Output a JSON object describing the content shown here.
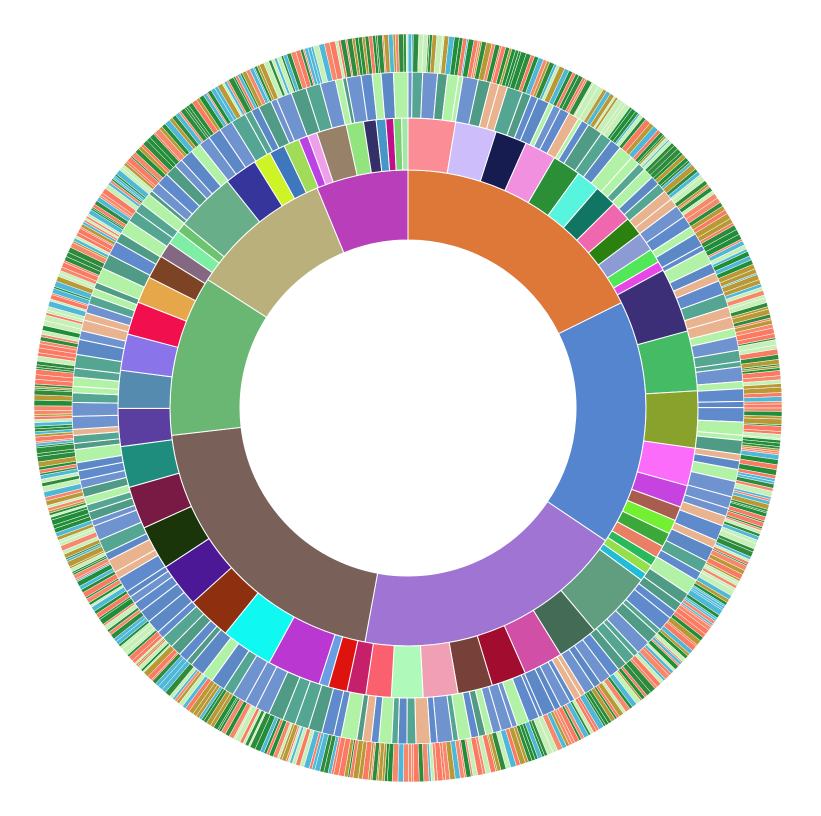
{
  "chart_data": {
    "type": "sunburst",
    "title": "",
    "legend": "none",
    "grid": false,
    "levels": [
      {
        "level": 1,
        "segments": [
          {
            "value": 15.9,
            "color": "#dd7838"
          },
          {
            "value": 15.0,
            "color": "#5685cf"
          },
          {
            "value": 16.6,
            "color": "#a074d2"
          },
          {
            "value": 18.2,
            "color": "#79615a"
          },
          {
            "value": 9.8,
            "color": "#69b772"
          },
          {
            "value": 8.7,
            "color": "#b9b07b"
          },
          {
            "value": 5.6,
            "color": "#b93eb9"
          }
        ]
      },
      {
        "level": 2,
        "segments": [
          {
            "value": 3.0,
            "color": "#fa8d95"
          },
          {
            "value": 2.6,
            "color": "#cdbdfa"
          },
          {
            "value": 2.0,
            "color": "#161c4f"
          },
          {
            "value": 2.0,
            "color": "#f090de"
          },
          {
            "value": 1.8,
            "color": "#2b8f37"
          },
          {
            "value": 1.5,
            "color": "#58f5de"
          },
          {
            "value": 1.4,
            "color": "#107563"
          },
          {
            "value": 1.3,
            "color": "#ef67ae"
          },
          {
            "value": 1.2,
            "color": "#2a8110"
          },
          {
            "value": 1.2,
            "color": "#8c9bd3"
          },
          {
            "value": 0.9,
            "color": "#50e758"
          },
          {
            "value": 0.6,
            "color": "#e847e8"
          },
          {
            "value": 4.1,
            "color": "#3c2f78"
          },
          {
            "value": 3.8,
            "color": "#45bb66"
          },
          {
            "value": 3.6,
            "color": "#88a22c"
          },
          {
            "value": 2.4,
            "color": "#fb6cfb"
          },
          {
            "value": 1.4,
            "color": "#c643df"
          },
          {
            "value": 0.9,
            "color": "#a95d4f"
          },
          {
            "value": 0.9,
            "color": "#74f032"
          },
          {
            "value": 0.9,
            "color": "#3aa93a"
          },
          {
            "value": 0.8,
            "color": "#e97f65"
          },
          {
            "value": 0.6,
            "color": "#27b95a"
          },
          {
            "value": 0.6,
            "color": "#93e04a"
          },
          {
            "value": 0.5,
            "color": "#1fbdd7"
          },
          {
            "value": 4.3,
            "color": "#609e7f"
          },
          {
            "value": 2.6,
            "color": "#436b56"
          },
          {
            "value": 2.5,
            "color": "#d24fa8"
          },
          {
            "value": 2.2,
            "color": "#a20d2f"
          },
          {
            "value": 2.2,
            "color": "#77413a"
          },
          {
            "value": 2.2,
            "color": "#f09fb4"
          },
          {
            "value": 2.0,
            "color": "#affabb"
          },
          {
            "value": 1.6,
            "color": "#fa606e"
          },
          {
            "value": 1.2,
            "color": "#c6206b"
          },
          {
            "value": 1.2,
            "color": "#de130e"
          },
          {
            "value": 0.6,
            "color": "#6b9de3"
          },
          {
            "value": 3.4,
            "color": "#ba38d1"
          },
          {
            "value": 3.3,
            "color": "#0ff9f2"
          },
          {
            "value": 2.8,
            "color": "#8e3010"
          },
          {
            "value": 2.8,
            "color": "#4c1896"
          },
          {
            "value": 2.8,
            "color": "#1b350b"
          },
          {
            "value": 2.7,
            "color": "#791a45"
          },
          {
            "value": 2.6,
            "color": "#1f8d7e"
          },
          {
            "value": 2.4,
            "color": "#5a3fa0"
          },
          {
            "value": 2.4,
            "color": "#568bb0"
          },
          {
            "value": 2.3,
            "color": "#8a74ea"
          },
          {
            "value": 2.1,
            "color": "#f10f4e"
          },
          {
            "value": 1.7,
            "color": "#e6a64a"
          },
          {
            "value": 1.5,
            "color": "#7d4325"
          },
          {
            "value": 1.0,
            "color": "#846882"
          },
          {
            "value": 0.9,
            "color": "#7eeea4"
          },
          {
            "value": 0.6,
            "color": "#6cc46e"
          },
          {
            "value": 3.8,
            "color": "#67ae89"
          },
          {
            "value": 2.1,
            "color": "#36359c"
          },
          {
            "value": 1.1,
            "color": "#cef327"
          },
          {
            "value": 1.0,
            "color": "#3f77be"
          },
          {
            "value": 1.0,
            "color": "#a1dc59"
          },
          {
            "value": 0.6,
            "color": "#bb43e3"
          },
          {
            "value": 0.6,
            "color": "#ee9eea"
          },
          {
            "value": 1.9,
            "color": "#988169"
          },
          {
            "value": 1.1,
            "color": "#92e57e"
          },
          {
            "value": 0.8,
            "color": "#352f68"
          },
          {
            "value": 0.6,
            "color": "#4497c7"
          },
          {
            "value": 0.5,
            "color": "#c00f8b"
          },
          {
            "value": 0.5,
            "color": "#7cd174"
          },
          {
            "value": 0.4,
            "color": "#a2e7a7"
          }
        ]
      },
      {
        "level": 3,
        "palette": [
          "#6f93cf",
          "#5c89c6",
          "#5f8acb",
          "#4f9b85",
          "#55a593",
          "#b1f2a6",
          "#e8b38e"
        ],
        "segment_count": 200
      },
      {
        "level": 4,
        "palette": [
          "#f6896c",
          "#2d8b3b",
          "#b99935",
          "#c7f0b8",
          "#4fb8d8",
          "#218d39",
          "#fa7a62"
        ],
        "segment_count": 640
      }
    ]
  }
}
